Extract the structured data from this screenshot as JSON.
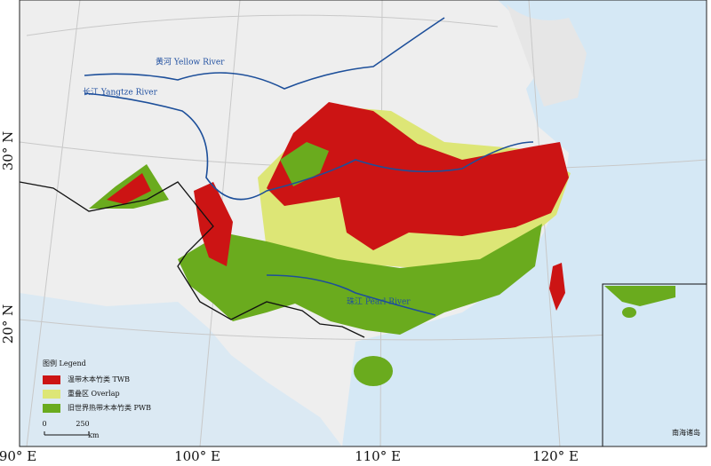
{
  "map": {
    "rivers": [
      "黄河 Yellow River",
      "长江 Yangtze River",
      "珠江 Pearl River"
    ],
    "latitude_labels": [
      "30° N",
      "20° N"
    ],
    "longitude_labels": [
      "90° E",
      "100° E",
      "110° E",
      "120° E"
    ],
    "legend": {
      "title": "图例 Legend",
      "items": [
        {
          "label": "温带木本竹类 TWB",
          "color": "#cc1414"
        },
        {
          "label": "重叠区 Overlap",
          "color": "#dde676"
        },
        {
          "label": "旧世界热带木本竹类 PWB",
          "color": "#6aab1e"
        }
      ]
    },
    "scale_bar": {
      "labels": [
        "0",
        "250"
      ],
      "unit": "km"
    },
    "inset": {
      "label": "南海诸岛"
    }
  }
}
